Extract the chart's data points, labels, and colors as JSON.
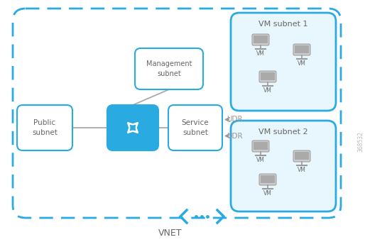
{
  "bg_color": "#ffffff",
  "blue": "#29abe2",
  "lt_blue": "#e8f6fd",
  "gray_line": "#aaaaaa",
  "gray_text": "#666666",
  "gray_arrow": "#999999",
  "router_blue": "#29abe2",
  "vnet_label": "VNET",
  "side_label": "368532",
  "pub_label": "Public\nsubnet",
  "mgmt_label": "Management\nsubnet",
  "svc_label": "Service\nsubnet",
  "vm1_label": "VM subnet 1",
  "vm2_label": "VM subnet 2",
  "udr_label": "UDR",
  "vm_label": "VM",
  "figsize": [
    5.14,
    3.41
  ],
  "dpi": 100
}
